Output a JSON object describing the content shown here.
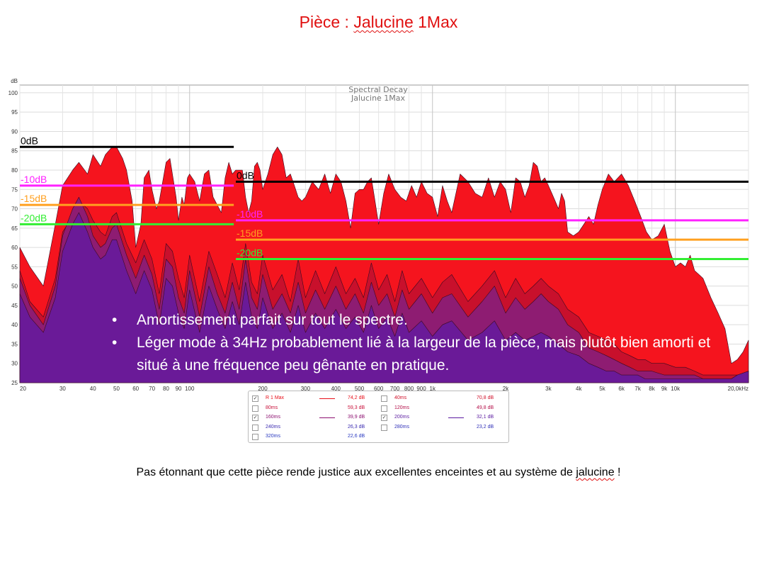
{
  "slide": {
    "title_prefix": "Pièce : ",
    "title_name": "Jalucine",
    "title_suffix": " 1Max",
    "footer_before": "Pas étonnant que cette pièce rende justice aux excellentes enceintes et au système de ",
    "footer_name": "jalucine",
    "footer_after": " !"
  },
  "bullets": [
    {
      "symbol": "•",
      "text": "Amortissement parfait sur tout le spectre."
    },
    {
      "symbol": "•",
      "text": "Léger mode à 34Hz probablement lié à la largeur de la pièce, mais plutôt bien amorti et situé à une fréquence peu gênante en pratique."
    }
  ],
  "legend": {
    "rows": [
      [
        {
          "checked": true,
          "mark": "✓",
          "name": "R 1 Max",
          "value": "74,2 dB",
          "color": "#e8101a",
          "line": true
        },
        {
          "checked": false,
          "mark": "",
          "name": "40ms",
          "value": "70,8 dB",
          "color": "#d0102a",
          "line": false
        }
      ],
      [
        {
          "checked": false,
          "mark": "",
          "name": "80ms",
          "value": "59,3 dB",
          "color": "#c8103a",
          "line": false
        },
        {
          "checked": false,
          "mark": "",
          "name": "120ms",
          "value": "49,8 dB",
          "color": "#b4104a",
          "line": false
        }
      ],
      [
        {
          "checked": true,
          "mark": "✓",
          "name": "160ms",
          "value": "39,9 dB",
          "color": "#8c1070",
          "line": true
        },
        {
          "checked": true,
          "mark": "✓",
          "name": "200ms",
          "value": "32,1 dB",
          "color": "#5a1aa0",
          "line": true
        }
      ],
      [
        {
          "checked": false,
          "mark": "",
          "name": "240ms",
          "value": "26,3 dB",
          "color": "#3a2ab0",
          "line": false
        },
        {
          "checked": false,
          "mark": "",
          "name": "280ms",
          "value": "23,2 dB",
          "color": "#3030b8",
          "line": false
        }
      ],
      [
        {
          "checked": false,
          "mark": "",
          "name": "320ms",
          "value": "22,6 dB",
          "color": "#2838c0",
          "line": false
        }
      ]
    ]
  },
  "chart_data": {
    "type": "area",
    "title": "Spectral Decay",
    "subtitle": "Jalucine 1Max",
    "ylabel": "dB",
    "xlabel": "",
    "ylim": [
      25,
      102
    ],
    "xlim": [
      20,
      20000
    ],
    "x_scale": "log",
    "y_ticks": [
      25,
      30,
      35,
      40,
      45,
      50,
      55,
      60,
      65,
      70,
      75,
      80,
      85,
      90,
      95,
      100
    ],
    "x_ticks": [
      {
        "v": 20,
        "label": "20"
      },
      {
        "v": 30,
        "label": "30"
      },
      {
        "v": 40,
        "label": "40"
      },
      {
        "v": 50,
        "label": "50"
      },
      {
        "v": 60,
        "label": "60"
      },
      {
        "v": 70,
        "label": "70"
      },
      {
        "v": 80,
        "label": "80"
      },
      {
        "v": 90,
        "label": "90"
      },
      {
        "v": 100,
        "label": "100"
      },
      {
        "v": 200,
        "label": "200"
      },
      {
        "v": 300,
        "label": "300"
      },
      {
        "v": 400,
        "label": "400"
      },
      {
        "v": 500,
        "label": "500"
      },
      {
        "v": 600,
        "label": "600"
      },
      {
        "v": 700,
        "label": "700"
      },
      {
        "v": 800,
        "label": "800"
      },
      {
        "v": 900,
        "label": "900"
      },
      {
        "v": 1000,
        "label": "1k"
      },
      {
        "v": 2000,
        "label": "2k"
      },
      {
        "v": 3000,
        "label": "3k"
      },
      {
        "v": 4000,
        "label": "4k"
      },
      {
        "v": 5000,
        "label": "5k"
      },
      {
        "v": 6000,
        "label": "6k"
      },
      {
        "v": 7000,
        "label": "7k"
      },
      {
        "v": 8000,
        "label": "8k"
      },
      {
        "v": 9000,
        "label": "9k"
      },
      {
        "v": 10000,
        "label": "10k"
      },
      {
        "v": 20000,
        "label": "20,0kHz"
      }
    ],
    "series": [
      {
        "name": "R 1 Max",
        "color": "#f5141e",
        "x": [
          20,
          22,
          25,
          28,
          30,
          33,
          35,
          38,
          40,
          43,
          45,
          48,
          50,
          53,
          55,
          58,
          60,
          63,
          65,
          68,
          70,
          73,
          75,
          78,
          80,
          83,
          85,
          88,
          90,
          93,
          95,
          98,
          100,
          105,
          110,
          115,
          120,
          125,
          130,
          135,
          140,
          145,
          150,
          155,
          160,
          165,
          170,
          175,
          180,
          185,
          190,
          195,
          200,
          210,
          220,
          230,
          240,
          250,
          260,
          270,
          280,
          290,
          300,
          320,
          340,
          360,
          380,
          400,
          420,
          440,
          460,
          480,
          500,
          520,
          540,
          560,
          580,
          600,
          630,
          660,
          700,
          740,
          780,
          820,
          860,
          900,
          950,
          1000,
          1050,
          1100,
          1150,
          1200,
          1300,
          1400,
          1500,
          1600,
          1700,
          1800,
          1900,
          2000,
          2100,
          2200,
          2300,
          2400,
          2500,
          2600,
          2700,
          2800,
          2900,
          3000,
          3100,
          3200,
          3300,
          3400,
          3500,
          3600,
          3800,
          4000,
          4200,
          4400,
          4600,
          4800,
          5000,
          5300,
          5600,
          6000,
          6400,
          6800,
          7200,
          7600,
          8000,
          8500,
          9000,
          9500,
          10000,
          10500,
          11000,
          11500,
          12000,
          12500,
          13000,
          14000,
          15000,
          16000,
          17000,
          18000,
          19000,
          20000
        ],
        "y": [
          60,
          55,
          50,
          66,
          76,
          80,
          82,
          79,
          84,
          81,
          84,
          86,
          86,
          83,
          80,
          72,
          60,
          66,
          78,
          80,
          75,
          70,
          72,
          78,
          82,
          83,
          79,
          73,
          67,
          73,
          71,
          78,
          79,
          77,
          72,
          79,
          80,
          73,
          71,
          69,
          78,
          82,
          79,
          80,
          80,
          80,
          73,
          69,
          72,
          81,
          82,
          80,
          75,
          79,
          84,
          86,
          84,
          78,
          79,
          76,
          73,
          72,
          73,
          77,
          75,
          79,
          74,
          79,
          77,
          72,
          65,
          74,
          75,
          75,
          77,
          78,
          72,
          66,
          74,
          79,
          75,
          73,
          72,
          76,
          73,
          77,
          74,
          73,
          68,
          76,
          72,
          69,
          79,
          77,
          74,
          73,
          78,
          73,
          77,
          75,
          69,
          78,
          77,
          73,
          76,
          82,
          81,
          77,
          78,
          76,
          74,
          72,
          70,
          74,
          72,
          64,
          63,
          64,
          66,
          68,
          66,
          71,
          75,
          79,
          77,
          79,
          76,
          72,
          68,
          64,
          62,
          63,
          66,
          59,
          55,
          56,
          55,
          58,
          54,
          53,
          52,
          47,
          43,
          39,
          30,
          31,
          33,
          36
        ]
      },
      {
        "name": "40ms",
        "color": "#c8102c",
        "x": [
          20,
          22,
          25,
          28,
          30,
          33,
          35,
          38,
          40,
          43,
          45,
          48,
          50,
          55,
          60,
          65,
          70,
          75,
          80,
          85,
          90,
          95,
          100,
          110,
          120,
          130,
          140,
          150,
          160,
          170,
          180,
          190,
          200,
          220,
          240,
          260,
          280,
          300,
          330,
          360,
          400,
          440,
          480,
          520,
          560,
          600,
          650,
          700,
          750,
          800,
          900,
          1000,
          1100,
          1200,
          1400,
          1600,
          1800,
          2000,
          2200,
          2400,
          2600,
          2800,
          3000,
          3300,
          3600,
          4000,
          4400,
          4800,
          5200,
          5600,
          6000,
          6500,
          7000,
          7500,
          8000,
          9000,
          10000,
          11000,
          12000,
          13000,
          14000,
          15000,
          16000,
          17000,
          18000,
          20000
        ],
        "y": [
          54,
          46,
          42,
          52,
          64,
          68,
          72,
          70,
          67,
          64,
          63,
          68,
          69,
          61,
          56,
          62,
          57,
          48,
          61,
          59,
          52,
          47,
          58,
          46,
          59,
          53,
          47,
          56,
          49,
          61,
          51,
          48,
          58,
          49,
          53,
          46,
          57,
          47,
          54,
          48,
          55,
          48,
          52,
          47,
          56,
          49,
          53,
          46,
          54,
          48,
          52,
          47,
          51,
          53,
          46,
          50,
          54,
          47,
          52,
          48,
          50,
          52,
          50,
          48,
          44,
          42,
          38,
          37,
          36,
          35,
          33,
          32,
          31,
          31,
          30,
          30,
          29,
          29,
          28,
          27,
          27,
          27,
          27,
          27,
          27,
          27
        ]
      },
      {
        "name": "160ms",
        "color": "#8e1c72",
        "x": [
          20,
          22,
          25,
          28,
          30,
          33,
          35,
          38,
          40,
          43,
          45,
          48,
          50,
          55,
          60,
          65,
          70,
          75,
          80,
          85,
          90,
          95,
          100,
          110,
          120,
          130,
          140,
          150,
          160,
          170,
          180,
          190,
          200,
          220,
          240,
          260,
          280,
          300,
          330,
          360,
          400,
          440,
          480,
          520,
          560,
          600,
          650,
          700,
          750,
          800,
          900,
          1000,
          1100,
          1200,
          1400,
          1600,
          1800,
          2000,
          2200,
          2400,
          2600,
          2800,
          3000,
          3300,
          3600,
          4000,
          4400,
          4800,
          5200,
          5600,
          6000,
          6500,
          7000,
          7500,
          8000,
          9000,
          10000,
          11000,
          12000,
          13000,
          14000,
          15000,
          16000,
          17000,
          18000,
          20000
        ],
        "y": [
          52,
          45,
          40,
          50,
          63,
          70,
          73,
          68,
          63,
          60,
          61,
          65,
          66,
          58,
          52,
          58,
          53,
          44,
          57,
          55,
          47,
          43,
          54,
          42,
          55,
          48,
          43,
          51,
          44,
          57,
          47,
          44,
          53,
          44,
          48,
          43,
          51,
          43,
          49,
          44,
          50,
          44,
          48,
          43,
          51,
          45,
          48,
          42,
          49,
          44,
          48,
          43,
          47,
          48,
          42,
          46,
          50,
          43,
          47,
          44,
          46,
          48,
          46,
          44,
          40,
          38,
          34,
          33,
          32,
          31,
          30,
          29,
          28,
          28,
          28,
          27,
          27,
          27,
          27,
          26,
          26,
          26,
          26,
          26,
          27,
          28
        ]
      },
      {
        "name": "200ms",
        "color": "#6a1a98",
        "x": [
          20,
          22,
          25,
          28,
          30,
          33,
          35,
          38,
          40,
          43,
          45,
          48,
          50,
          55,
          60,
          65,
          70,
          75,
          80,
          85,
          90,
          95,
          100,
          110,
          120,
          130,
          140,
          150,
          160,
          170,
          180,
          190,
          200,
          220,
          240,
          260,
          280,
          300,
          330,
          360,
          400,
          440,
          480,
          520,
          560,
          600,
          650,
          700,
          750,
          800,
          900,
          1000,
          1100,
          1200,
          1400,
          1600,
          1800,
          2000,
          2200,
          2400,
          2600,
          2800,
          3000,
          3300,
          3600,
          4000,
          4400,
          4800,
          5200,
          5600,
          6000,
          6500,
          7000,
          7500,
          8000,
          9000,
          10000,
          11000,
          12000,
          13000,
          14000,
          15000,
          16000,
          17000,
          18000,
          20000
        ],
        "y": [
          48,
          42,
          38,
          47,
          59,
          66,
          69,
          64,
          60,
          57,
          58,
          62,
          62,
          54,
          48,
          54,
          49,
          40,
          52,
          50,
          43,
          39,
          49,
          38,
          50,
          44,
          39,
          46,
          40,
          51,
          42,
          39,
          47,
          39,
          43,
          38,
          45,
          38,
          43,
          39,
          44,
          39,
          42,
          38,
          45,
          39,
          42,
          37,
          43,
          38,
          41,
          37,
          40,
          41,
          36,
          38,
          41,
          36,
          38,
          36,
          37,
          38,
          37,
          35,
          33,
          32,
          30,
          29,
          28,
          28,
          27,
          27,
          27,
          26,
          26,
          26,
          26,
          26,
          26,
          26,
          26,
          26,
          26,
          26,
          27,
          28
        ]
      }
    ],
    "reference_lines": [
      {
        "label": "0dB",
        "color": "#000000",
        "x_from": 20,
        "x_to": 152,
        "y": 86
      },
      {
        "label": "-10dB",
        "color": "#ff22ff",
        "x_from": 20,
        "x_to": 152,
        "y": 76
      },
      {
        "label": "-15dB",
        "color": "#ffa020",
        "x_from": 20,
        "x_to": 152,
        "y": 71
      },
      {
        "label": "-20dB",
        "color": "#33ee33",
        "x_from": 20,
        "x_to": 152,
        "y": 66
      },
      {
        "label": "0dB",
        "color": "#000000",
        "x_from": 155,
        "x_to": 20000,
        "y": 77
      },
      {
        "label": "-10dB",
        "color": "#ff22ff",
        "x_from": 155,
        "x_to": 20000,
        "y": 67
      },
      {
        "label": "-15dB",
        "color": "#ffa020",
        "x_from": 155,
        "x_to": 20000,
        "y": 62
      },
      {
        "label": "-20dB",
        "color": "#33ee33",
        "x_from": 155,
        "x_to": 20000,
        "y": 57
      }
    ]
  }
}
